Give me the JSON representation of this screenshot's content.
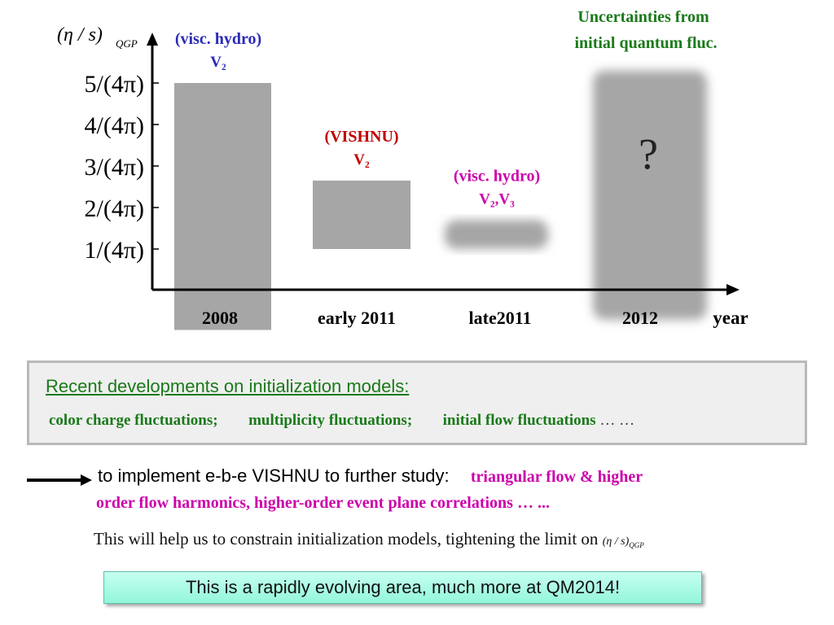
{
  "chart_data": {
    "type": "bar",
    "ylabel_main": "(η / s)",
    "ylabel_sub": "QGP",
    "xlabel": "year",
    "categories": [
      "2008",
      "early 2011",
      "late2011",
      "2012"
    ],
    "y_ticks": [
      {
        "value": 1,
        "label": "1/(4π)"
      },
      {
        "value": 2,
        "label": "2/(4π)"
      },
      {
        "value": 3,
        "label": "3/(4π)"
      },
      {
        "value": 4,
        "label": "4/(4π)"
      },
      {
        "value": 5,
        "label": "5/(4π)"
      }
    ],
    "ylim": [
      -0.95,
      5.5
    ],
    "bars": [
      {
        "category": "2008",
        "low": -0.95,
        "high": 5.0,
        "label_line1": "(visc. hydro)",
        "label_line2": "V₂",
        "label_color": "#2b2bb8",
        "blurred": false
      },
      {
        "category": "early 2011",
        "low": 1.0,
        "high": 2.65,
        "label_line1": "(VISHNU)",
        "label_line2": "V₂",
        "label_color": "#c00000",
        "blurred": false
      },
      {
        "category": "late2011",
        "low": 1.0,
        "high": 1.7,
        "label_line1": "(visc. hydro)",
        "label_line2": "V₂,V₃",
        "label_color": "#cc00aa",
        "blurred": true
      },
      {
        "category": "2012",
        "low": -0.7,
        "high": 5.3,
        "label_line1": "",
        "label_line2": "",
        "label_color": "#111111",
        "blurred": true,
        "center_text": "?"
      }
    ],
    "annotation": {
      "line1": "Uncertainties from",
      "line2": "initial quantum fluc.",
      "color": "#1a7a1a"
    }
  },
  "box": {
    "title": "Recent developments on initialization models:",
    "item1": "color charge fluctuations;",
    "item2": "multiplicity fluctuations;",
    "item3": "initial flow fluctuations",
    "ellipsis": " … …"
  },
  "text": {
    "line1_plain": "to implement e-b-e VISHNU to further study:",
    "line1_mag": "triangular flow & higher",
    "line2": "order flow harmonics,  higher-order event plane  correlations … ...",
    "line3": "This will help us to constrain initialization models, tightening the limit on",
    "line3_sym": "(η / s)",
    "line3_sub": "QGP"
  },
  "footer": {
    "text": "This is a rapidly evolving area, much more at QM2014!"
  },
  "colors": {
    "bar": "#a6a6a6",
    "axis": "#000000"
  }
}
